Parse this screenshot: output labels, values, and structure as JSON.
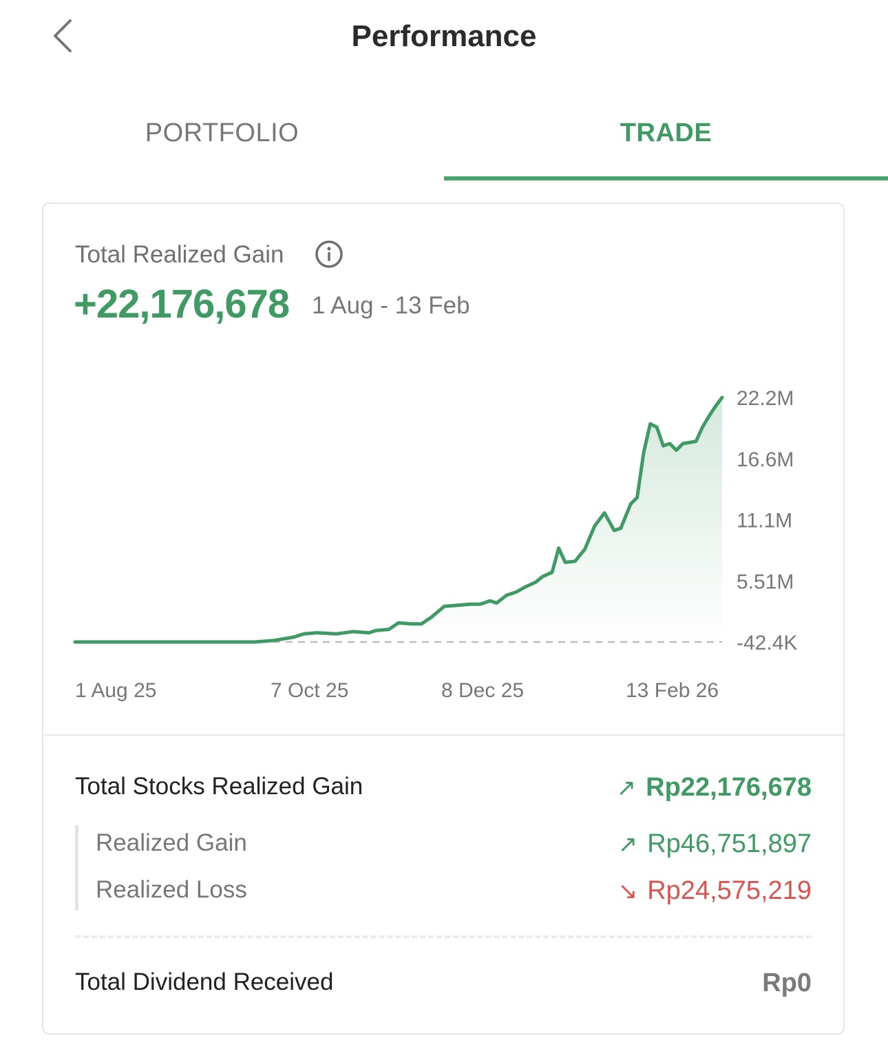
{
  "header": {
    "title": "Performance"
  },
  "tabs": [
    {
      "label": "PORTFOLIO",
      "active": false
    },
    {
      "label": "TRADE",
      "active": true
    }
  ],
  "summary": {
    "label": "Total Realized Gain",
    "value": "+22,176,678",
    "range": "1 Aug - 13 Feb"
  },
  "chart_data": {
    "type": "area",
    "y_ticks": [
      "22.2M",
      "16.6M",
      "11.1M",
      "5.51M",
      "-42.4K"
    ],
    "x_ticks": [
      "1 Aug 25",
      "7 Oct 25",
      "8 Dec 25",
      "13 Feb 26"
    ],
    "ylim": [
      -42400,
      22200000
    ],
    "x": [
      "2025-08-01",
      "2025-08-15",
      "2025-09-01",
      "2025-09-15",
      "2025-09-25",
      "2025-10-01",
      "2025-10-07",
      "2025-10-10",
      "2025-10-14",
      "2025-10-20",
      "2025-10-25",
      "2025-10-30",
      "2025-11-01",
      "2025-11-05",
      "2025-11-08",
      "2025-11-12",
      "2025-11-15",
      "2025-11-18",
      "2025-11-22",
      "2025-11-26",
      "2025-11-30",
      "2025-12-03",
      "2025-12-06",
      "2025-12-08",
      "2025-12-11",
      "2025-12-14",
      "2025-12-17",
      "2025-12-20",
      "2025-12-22",
      "2025-12-25",
      "2025-12-27",
      "2025-12-29",
      "2026-01-01",
      "2026-01-04",
      "2026-01-07",
      "2026-01-10",
      "2026-01-13",
      "2026-01-15",
      "2026-01-18",
      "2026-01-20",
      "2026-01-22",
      "2026-01-24",
      "2026-01-26",
      "2026-01-28",
      "2026-01-30",
      "2026-02-01",
      "2026-02-03",
      "2026-02-05",
      "2026-02-07",
      "2026-02-09",
      "2026-02-11",
      "2026-02-13",
      "2026-02-15"
    ],
    "values": [
      -42400,
      -42400,
      -42400,
      -42400,
      -42400,
      100000,
      400000,
      700000,
      800000,
      700000,
      900000,
      800000,
      1000000,
      1100000,
      1700000,
      1600000,
      1600000,
      2200000,
      3200000,
      3300000,
      3400000,
      3400000,
      3700000,
      3500000,
      4200000,
      4500000,
      5000000,
      5400000,
      5900000,
      6300000,
      8500000,
      7200000,
      7300000,
      8400000,
      10500000,
      11700000,
      10100000,
      10300000,
      12500000,
      13100000,
      17200000,
      19800000,
      19500000,
      17800000,
      18000000,
      17400000,
      18000000,
      18100000,
      18200000,
      19500000,
      20500000,
      21400000,
      22200000
    ],
    "series": [
      {
        "color": "#3f9a63"
      }
    ]
  },
  "breakdown": {
    "total_stocks": {
      "label": "Total Stocks Realized Gain",
      "value": "Rp22,176,678",
      "arrow": "↗"
    },
    "realized_gain": {
      "label": "Realized Gain",
      "value": "Rp46,751,897",
      "arrow": "↗"
    },
    "realized_loss": {
      "label": "Realized Loss",
      "value": "Rp24,575,219",
      "arrow": "↘"
    },
    "dividend": {
      "label": "Total Dividend Received",
      "value": "Rp0"
    }
  },
  "colors": {
    "accent": "#3f9a63",
    "loss": "#d9534f",
    "muted": "#777777"
  },
  "icons": {
    "back": "chevron-left-icon",
    "info": "info-icon",
    "up": "arrow-up-right-icon",
    "down": "arrow-down-right-icon"
  }
}
